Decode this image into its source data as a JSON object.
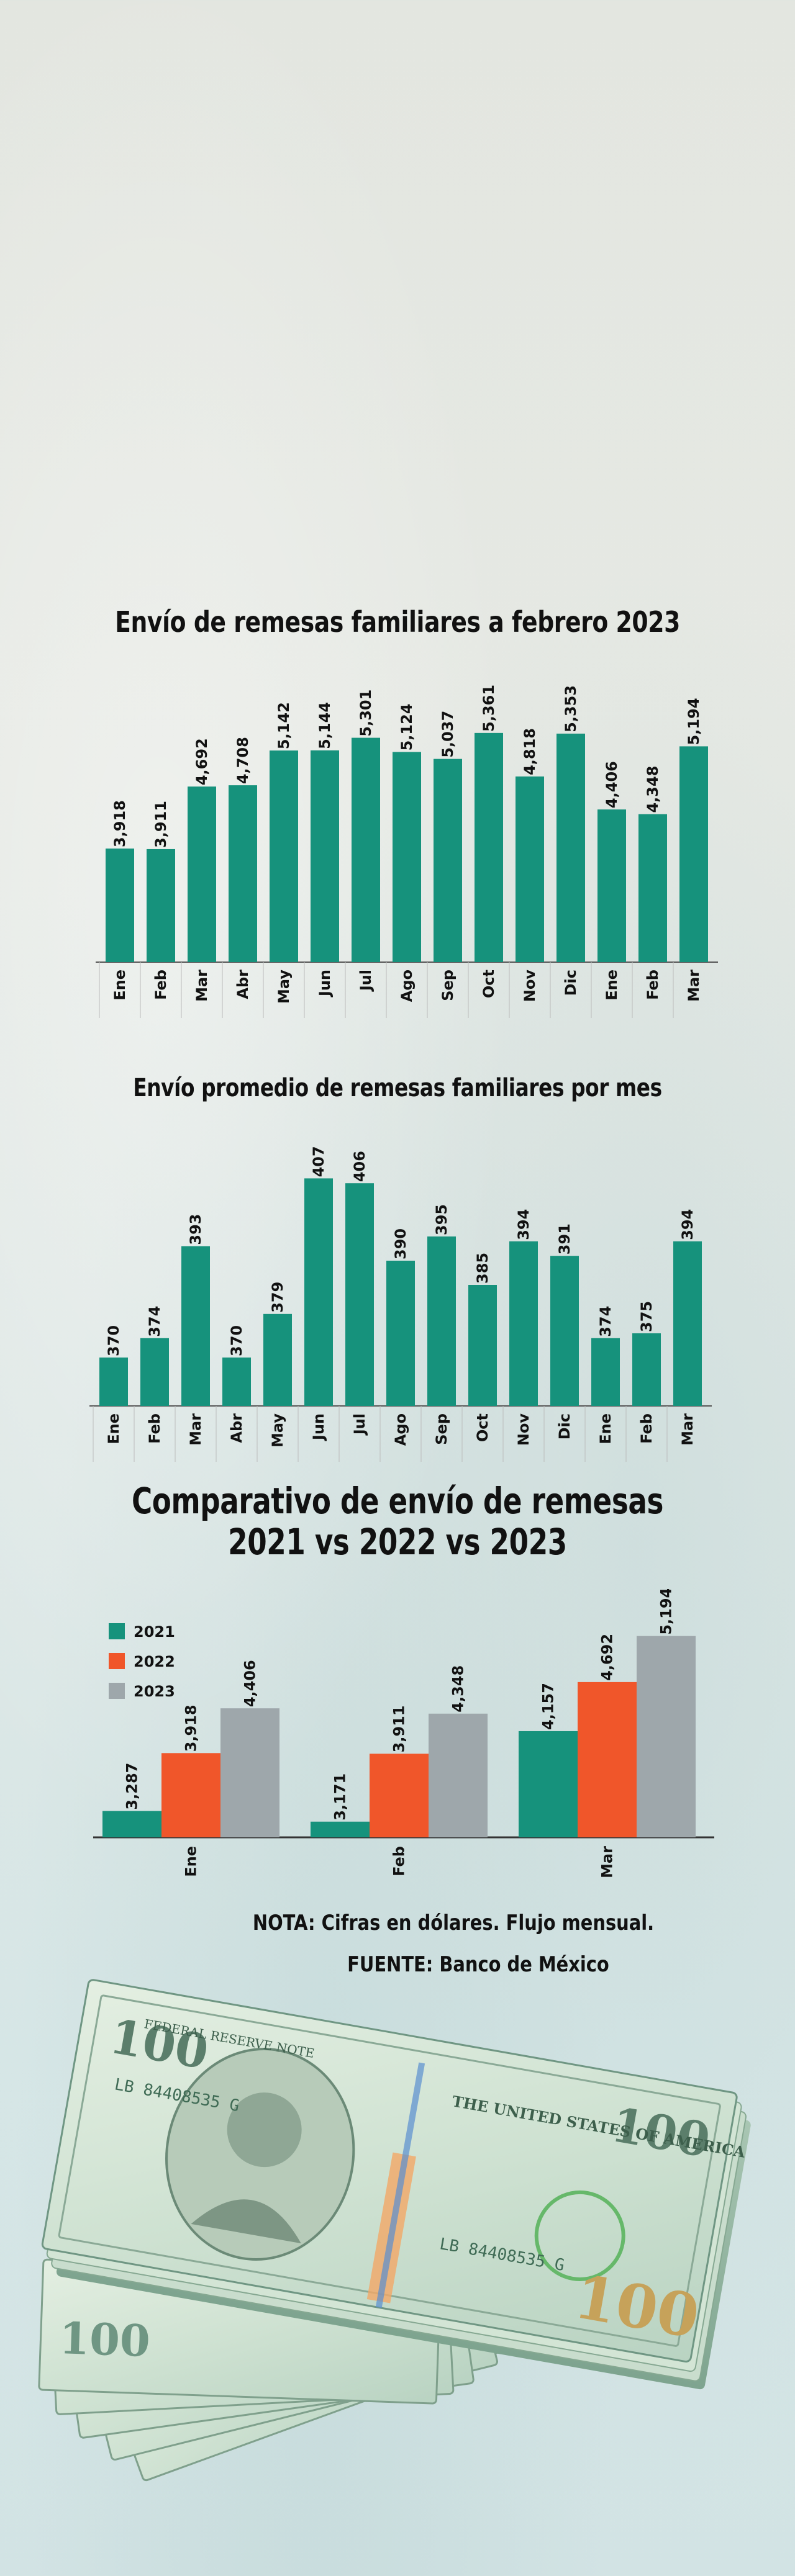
{
  "titles": {
    "chart1": "Envío de remesas familiares a febrero 2023",
    "chart2": "Envío promedio de remesas familiares por mes",
    "chart3_line1": "Comparativo de envío de remesas",
    "chart3_line2": "2021 vs 2022 vs 2023"
  },
  "chart_data": [
    {
      "type": "bar",
      "title": "Envío de remesas familiares a febrero 2023",
      "categories": [
        "Ene",
        "Feb",
        "Mar",
        "Abr",
        "May",
        "Jun",
        "Jul",
        "Ago",
        "Sep",
        "Oct",
        "Nov",
        "Dic",
        "Ene",
        "Feb",
        "Mar"
      ],
      "values": [
        3918,
        3911,
        4692,
        4708,
        5142,
        5144,
        5301,
        5124,
        5037,
        5361,
        4818,
        5353,
        4406,
        4348,
        5194
      ],
      "labels": [
        "3,918",
        "3,911",
        "4,692",
        "4,708",
        "5,142",
        "5,144",
        "5,301",
        "5,124",
        "5,037",
        "5,361",
        "4,818",
        "5,353",
        "4,406",
        "4,348",
        "5,194"
      ],
      "ylim": [
        2500,
        5600
      ],
      "xlabel": "",
      "ylabel": ""
    },
    {
      "type": "bar",
      "title": "Envío promedio de remesas familiares por mes",
      "categories": [
        "Ene",
        "Feb",
        "Mar",
        "Abr",
        "May",
        "Jun",
        "Jul",
        "Ago",
        "Sep",
        "Oct",
        "Nov",
        "Dic",
        "Ene",
        "Feb",
        "Mar"
      ],
      "values": [
        370,
        374,
        393,
        370,
        379,
        407,
        406,
        390,
        395,
        385,
        394,
        391,
        374,
        375,
        394
      ],
      "labels": [
        "370",
        "374",
        "393",
        "370",
        "379",
        "407",
        "406",
        "390",
        "395",
        "385",
        "394",
        "391",
        "374",
        "375",
        "394"
      ],
      "ylim": [
        360,
        410
      ],
      "xlabel": "",
      "ylabel": ""
    },
    {
      "type": "bar",
      "title": "Comparativo de envío de remesas 2021 vs 2022 vs 2023",
      "categories": [
        "Ene",
        "Feb",
        "Mar"
      ],
      "series": [
        {
          "name": "2021",
          "values": [
            3287,
            3171,
            4157
          ],
          "labels": [
            "3,287",
            "3,171",
            "4,157"
          ]
        },
        {
          "name": "2022",
          "values": [
            3918,
            3911,
            4692
          ],
          "labels": [
            "3,918",
            "3,911",
            "4,692"
          ]
        },
        {
          "name": "2023",
          "values": [
            4406,
            4348,
            5194
          ],
          "labels": [
            "4,406",
            "4,348",
            "5,194"
          ]
        }
      ],
      "ylim": [
        3000,
        5300
      ],
      "legend": "top-left"
    }
  ],
  "colors": {
    "teal": "#16927c",
    "orange": "#f0562a",
    "gray": "#9ea7ab",
    "axis": "#555555",
    "text": "#111111"
  },
  "notes": {
    "nota": "NOTA: Cifras en dólares. Flujo mensual.",
    "fuente": "FUENTE: Banco de México"
  },
  "illustration": {
    "denomination": "100",
    "serial": "LB 84408535 G",
    "bank_line": "FEDERAL RESERVE NOTE",
    "country_line": "THE UNITED STATES OF AMERICA"
  }
}
